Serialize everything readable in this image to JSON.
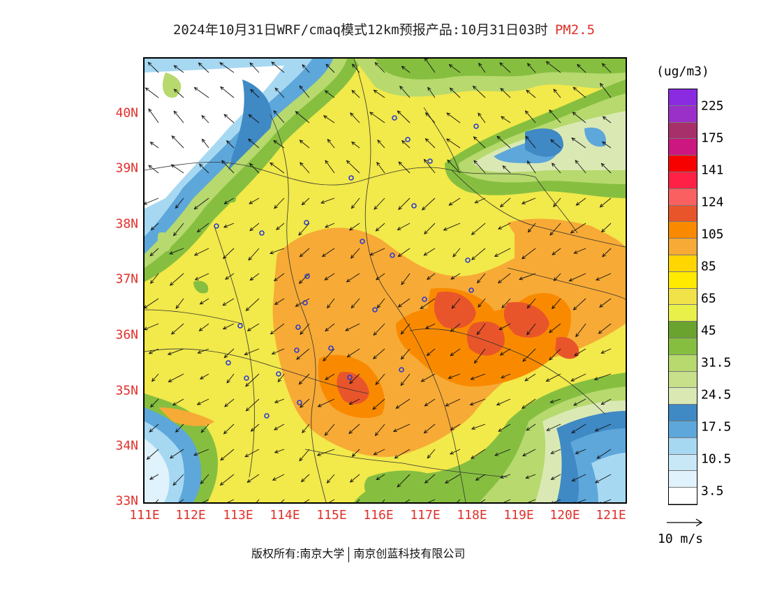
{
  "title": {
    "main": "2024年10月31日WRF/cmaq模式12km预报产品:10月31日03时",
    "product": "PM2.5"
  },
  "axes": {
    "lat_labels": [
      "40N",
      "39N",
      "38N",
      "37N",
      "36N",
      "35N",
      "34N",
      "33N"
    ],
    "lon_labels": [
      "111E",
      "112E",
      "113E",
      "114E",
      "115E",
      "116E",
      "117E",
      "118E",
      "119E",
      "120E",
      "121E"
    ],
    "lon_range": [
      111,
      121.25
    ],
    "lat_range": [
      33,
      40.9
    ]
  },
  "legend": {
    "unit": "(ug/m3)",
    "labels": [
      "225",
      "175",
      "141",
      "124",
      "105",
      "85",
      "65",
      "45",
      "31.5",
      "24.5",
      "17.5",
      "10.5",
      "3.5"
    ],
    "colors_top_to_bottom": [
      "#8a2be2",
      "#9b30c8",
      "#a8306a",
      "#cc1680",
      "#f70000",
      "#ff2246",
      "#fa6060",
      "#e9552a",
      "#f98a00",
      "#f7aa35",
      "#ffd600",
      "#ffea00",
      "#f1e24a",
      "#eaf04a",
      "#6aa32e",
      "#86bf40",
      "#b7d96e",
      "#c8e08a",
      "#dae9b4",
      "#3f89c5",
      "#5da7da",
      "#a7d8f2",
      "#c8e8f8",
      "#e0f2fc",
      "#ffffff"
    ],
    "wind_reference": "10 m/s"
  },
  "map": {
    "city_count": 24
  },
  "footer": {
    "copyright": "版权所有:南京大学",
    "company": "南京创蓝科技有限公司"
  }
}
